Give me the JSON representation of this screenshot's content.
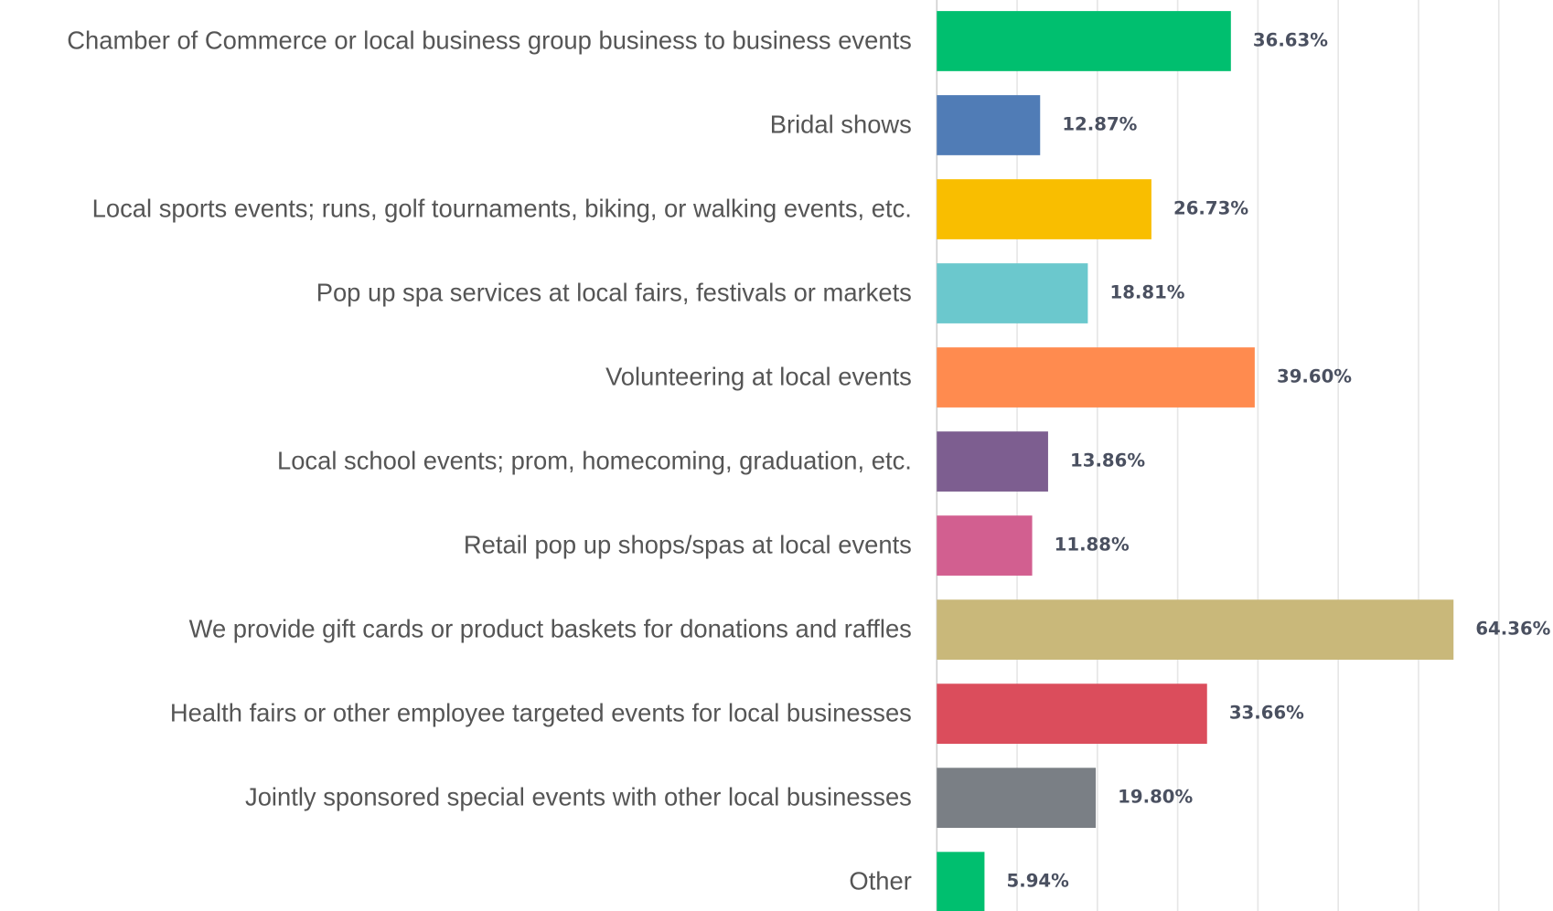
{
  "chart_data": {
    "type": "bar",
    "orientation": "horizontal",
    "categories": [
      "Chamber of Commerce or local business group business to business events",
      "Bridal shows",
      "Local sports events; runs, golf tournaments, biking, or walking events, etc.",
      "Pop up spa services at local fairs, festivals or markets",
      "Volunteering at local events",
      "Local school events; prom, homecoming, graduation, etc.",
      "Retail pop up shops/spas at local events",
      "We provide gift cards or product baskets for donations and raffles",
      "Health fairs or other employee targeted events for local businesses",
      "Jointly sponsored special events with other local businesses",
      "Other"
    ],
    "values": [
      36.63,
      12.87,
      26.73,
      18.81,
      39.6,
      13.86,
      11.88,
      64.36,
      33.66,
      19.8,
      5.94
    ],
    "value_labels": [
      "36.63%",
      "12.87%",
      "26.73%",
      "18.81%",
      "39.60%",
      "13.86%",
      "11.88%",
      "64.36%",
      "33.66%",
      "19.80%",
      "5.94%"
    ],
    "colors": [
      "#00bf6f",
      "#507cb6",
      "#f9be00",
      "#6bc8cd",
      "#ff8b4f",
      "#7d5e90",
      "#d25f90",
      "#c9b87a",
      "#db4d5c",
      "#7a7f85",
      "#00bf6f"
    ],
    "xlim": [
      0,
      77
    ],
    "xticks": [
      0,
      10,
      20,
      30,
      40,
      50,
      60,
      70
    ],
    "grid": true
  }
}
